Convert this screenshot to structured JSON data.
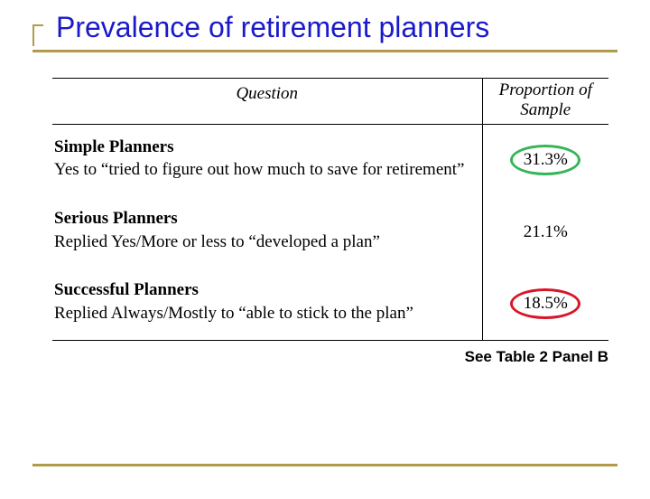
{
  "colors": {
    "accent": "#b29a4a",
    "title": "#1a1aca",
    "oval_green": "#35b558",
    "oval_red": "#d8162a"
  },
  "title": "Prevalence of retirement planners",
  "header": {
    "question": "Question",
    "proportion": "Proportion of Sample"
  },
  "rows": [
    {
      "category": "Simple Planners",
      "desc": "Yes to “tried to figure out how much to save for retirement”",
      "value": "31.3%",
      "circle": "green"
    },
    {
      "category": "Serious Planners",
      "desc": "Replied Yes/More or less to “developed a plan”",
      "value": "21.1%",
      "circle": "none"
    },
    {
      "category": "Successful Planners",
      "desc": "Replied Always/Mostly to “able to stick to the plan”",
      "value": "18.5%",
      "circle": "red"
    }
  ],
  "caption": "See Table 2 Panel B",
  "style": {
    "title_fontsize": 32,
    "body_fontsize": 19,
    "caption_fontsize": 17,
    "oval_w": 78,
    "oval_h": 34,
    "border_width": 1.5
  }
}
